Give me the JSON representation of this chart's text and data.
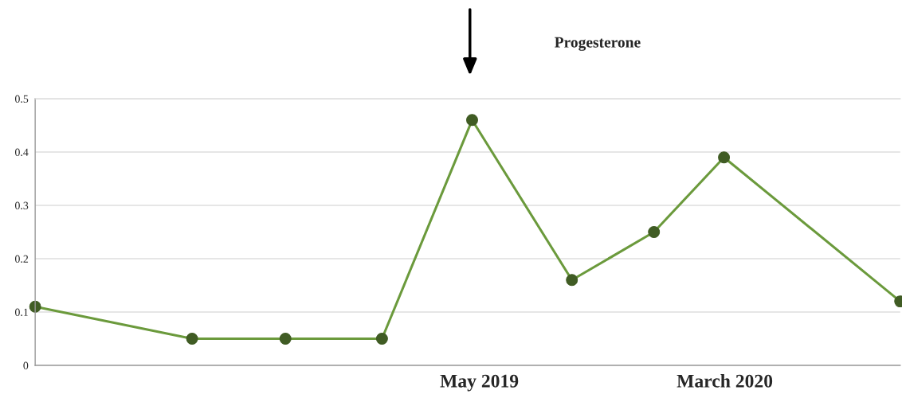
{
  "chart_data": {
    "type": "line",
    "x": [
      "2017-10-26",
      "2018-05-09",
      "2018-09-02",
      "2018-12-31",
      "2019-04-22",
      "2019-08-24",
      "2019-12-04",
      "2020-02-29",
      "2020-10-05"
    ],
    "series": [
      {
        "color": "#6b9a3c",
        "values": [
          0.11,
          0.05,
          0.05,
          0.05,
          0.46,
          0.16,
          0.25,
          0.39,
          0.12
        ]
      }
    ],
    "xlim": [
      "2017-10-26",
      "2020-10-05"
    ],
    "xticks": [
      {
        "value": "2019-05-01",
        "label": "May 2019"
      },
      {
        "value": "2020-03-01",
        "label": "March 2020"
      }
    ],
    "ylim": [
      0,
      0.5
    ],
    "yticks": [
      0,
      0.1,
      0.2,
      0.3,
      0.4,
      0.5
    ],
    "grid": "y",
    "marker": "circle",
    "line_style": "solid",
    "annotations": [
      "Progesterone"
    ]
  }
}
